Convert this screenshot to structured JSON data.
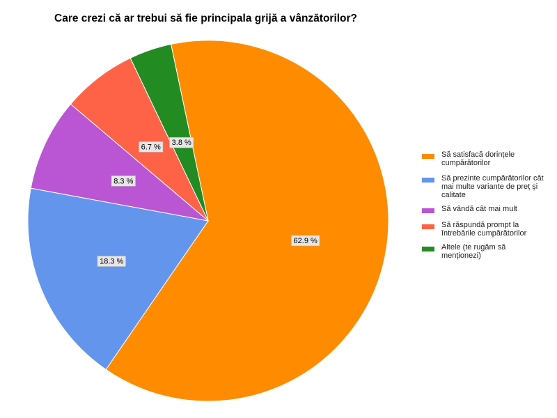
{
  "chart_data": {
    "type": "pie",
    "title": "Care crezi că ar trebui să fie principala grijă a vânzătorilor?",
    "slices": [
      {
        "label": "Să satisfacă dorințele cumpărătorilor",
        "value": 62.9,
        "display": "62.9 %",
        "color": "#ff8c00"
      },
      {
        "label": "Să prezinte cumpărătorilor cât mai multe variante de preț și calitate",
        "value": 18.3,
        "display": "18.3 %",
        "color": "#6495ed"
      },
      {
        "label": "Să vândă cât mai mult",
        "value": 8.3,
        "display": "8.3 %",
        "color": "#ba55d3"
      },
      {
        "label": "Să răspundă prompt la întrebările cumpărătorilor",
        "value": 6.7,
        "display": "6.7 %",
        "color": "#ff6347"
      },
      {
        "label": "Altele (te rugăm să menționezi)",
        "value": 3.8,
        "display": "3.8 %",
        "color": "#228b22"
      }
    ],
    "legend_position": "right"
  }
}
